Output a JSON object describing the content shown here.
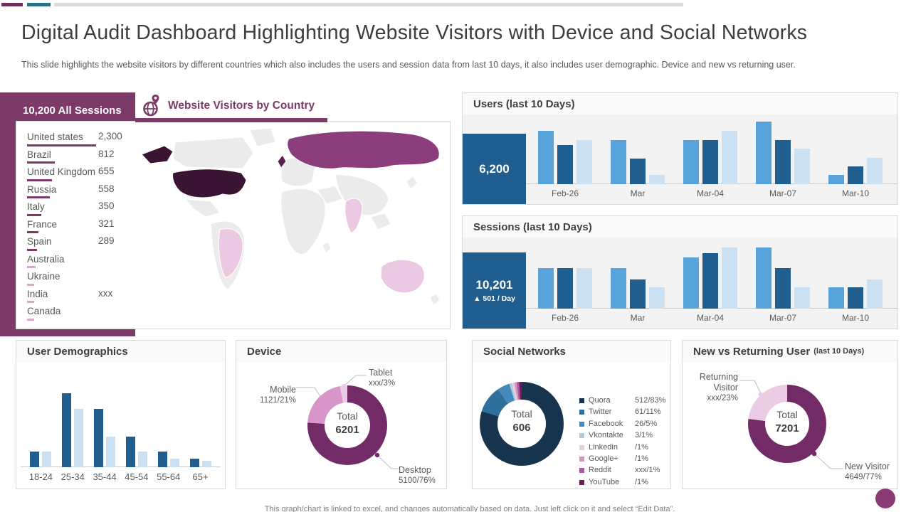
{
  "colors": {
    "purple": "#7D3968",
    "accent_bar_purple": "#6E2C5C",
    "accent_bar_teal": "#2C7083",
    "accent_bar_gray": "#DCDCDC",
    "blue_dark": "#1F5E8E",
    "blue_mid": "#56A4D9",
    "blue_light": "#CBE0F1",
    "country_bar_dark": "#7D3968",
    "country_bar_light": "#D9A9CB",
    "map_base": "#EBEBEB",
    "map_usa": "#3B1434",
    "map_russia": "#8C3E7C",
    "map_uk": "#5A2150",
    "map_pink": "#ECC9E3",
    "footer_circle": "#8A3B74"
  },
  "header": {
    "title": "Digital Audit Dashboard Highlighting Website Visitors with Device and Social Networks",
    "subtitle": "This slide highlights the website visitors by different countries which also includes the users and session data from last 10 days, it also includes user demographic. Device and new vs returning user."
  },
  "left_panel": {
    "title": "10,200 All Sessions"
  },
  "map": {
    "title": "Website Visitors by Country"
  },
  "footer": {
    "note": "This graph/chart is linked to excel,  and changes automatically based on data. Just left click on it and select “Edit Data”."
  },
  "chart_data": [
    {
      "type": "bar",
      "title": "Users (last 10 Days)",
      "categories": [
        "Feb-26",
        "Mar",
        "Mar-04",
        "Mar-07",
        "Mar-10"
      ],
      "series": [
        {
          "name": "series-a",
          "color": "#56A4D9",
          "values": [
            85,
            70,
            71,
            100,
            15
          ]
        },
        {
          "name": "series-b",
          "color": "#1F5E8E",
          "values": [
            63,
            41,
            71,
            71,
            28
          ]
        },
        {
          "name": "series-c",
          "color": "#CBE0F1",
          "values": [
            71,
            15,
            85,
            57,
            42
          ]
        }
      ],
      "summary": {
        "value": "6,200"
      },
      "value_scale": "percent-of-plot-height (axis unlabeled, estimated)",
      "grid": "off",
      "legend_position": "none"
    },
    {
      "type": "bar",
      "title": "Sessions (last 10 Days)",
      "categories": [
        "Feb-26",
        "Mar",
        "Mar-04",
        "Mar-07",
        "Mar-10"
      ],
      "series": [
        {
          "name": "series-a",
          "color": "#56A4D9",
          "values": [
            63,
            63,
            80,
            96,
            33
          ]
        },
        {
          "name": "series-b",
          "color": "#1F5E8E",
          "values": [
            63,
            46,
            87,
            63,
            33
          ]
        },
        {
          "name": "series-c",
          "color": "#CBE0F1",
          "values": [
            63,
            33,
            96,
            33,
            46
          ]
        }
      ],
      "summary": {
        "value": "10,201",
        "delta": "▲ 501 / Day"
      },
      "value_scale": "percent-of-plot-height (axis unlabeled, estimated)",
      "grid": "off",
      "legend_position": "none"
    },
    {
      "type": "bar",
      "title": "User Demographics",
      "categories": [
        "18-24",
        "25-34",
        "35-44",
        "45-54",
        "55-64",
        "65+"
      ],
      "series": [
        {
          "name": "dark",
          "color": "#1F5E8E",
          "values": [
            18,
            85,
            67,
            35,
            18,
            10
          ]
        },
        {
          "name": "light",
          "color": "#CBE0F1",
          "values": [
            18,
            67,
            35,
            18,
            10,
            7
          ]
        }
      ],
      "value_scale": "percent-of-plot-height (axis unlabeled, estimated)",
      "grid": "off",
      "legend_position": "none"
    },
    {
      "type": "pie",
      "title": "Device",
      "center": {
        "label": "Total",
        "value": "6201"
      },
      "slices": [
        {
          "label": "Desktop",
          "value": 76,
          "display": "5100/76%",
          "color": "#722B66"
        },
        {
          "label": "Mobile",
          "value": 21,
          "display": "1121/21%",
          "color": "#D795C9"
        },
        {
          "label": "Tablet",
          "value": 3,
          "display": "xxx/3%",
          "color": "#EACDE4"
        }
      ]
    },
    {
      "type": "pie",
      "title": "Social Networks",
      "center": {
        "label": "Total",
        "value": "606"
      },
      "slices": [
        {
          "label": "Quora",
          "value": 83,
          "display": "512/83%",
          "color": "#16344E"
        },
        {
          "label": "Twitter",
          "value": 11,
          "display": "61/11%",
          "color": "#2E6F9E"
        },
        {
          "label": "Facebook",
          "value": 5,
          "display": "26/5%",
          "color": "#4489B9"
        },
        {
          "label": "Vkontakte",
          "value": 1,
          "display": "3/1%",
          "color": "#AECBDD"
        },
        {
          "label": "Linkedin",
          "value": 1,
          "display": "/1%",
          "color": "#E6CEDF"
        },
        {
          "label": "Google+",
          "value": 1,
          "display": "/1%",
          "color": "#CF9AC2"
        },
        {
          "label": "Reddit",
          "value": 1,
          "display": "xxx/1%",
          "color": "#AB5A9A"
        },
        {
          "label": "YouTube",
          "value": 1,
          "display": "/1%",
          "color": "#6A1F5C"
        }
      ],
      "legend_position": "right"
    },
    {
      "type": "pie",
      "title": "New vs Returning User",
      "title_suffix": "(last 10 Days)",
      "center": {
        "label": "Total",
        "value": "7201"
      },
      "slices": [
        {
          "label": "New Visitor",
          "value": 77,
          "display": "4649/77%",
          "color": "#722B66"
        },
        {
          "label": "Returning Visitor",
          "value": 23,
          "display": "xxx/23%",
          "color": "#EACDE4"
        }
      ]
    },
    {
      "type": "table",
      "title": "Website Visitors by Country",
      "rows": [
        {
          "name": "United states",
          "value": "2,300",
          "bar": 97,
          "tone": "dark"
        },
        {
          "name": "Brazil",
          "value": "812",
          "bar": 39,
          "tone": "dark"
        },
        {
          "name": "United Kingdom",
          "value": "655",
          "bar": 35,
          "tone": "dark"
        },
        {
          "name": "Russia",
          "value": "558",
          "bar": 32,
          "tone": "dark"
        },
        {
          "name": "Italy",
          "value": "350",
          "bar": 20,
          "tone": "dark"
        },
        {
          "name": "France",
          "value": "321",
          "bar": 16,
          "tone": "dark"
        },
        {
          "name": "Spain",
          "value": "289",
          "bar": 14,
          "tone": "dark"
        },
        {
          "name": "Australia",
          "value": "",
          "bar": 12,
          "tone": "light"
        },
        {
          "name": "Ukraine",
          "value": "",
          "bar": 10,
          "tone": "light"
        },
        {
          "name": "India",
          "value": "xxx",
          "bar": 10,
          "tone": "light"
        },
        {
          "name": "Canada",
          "value": "",
          "bar": 10,
          "tone": "light"
        }
      ]
    }
  ]
}
